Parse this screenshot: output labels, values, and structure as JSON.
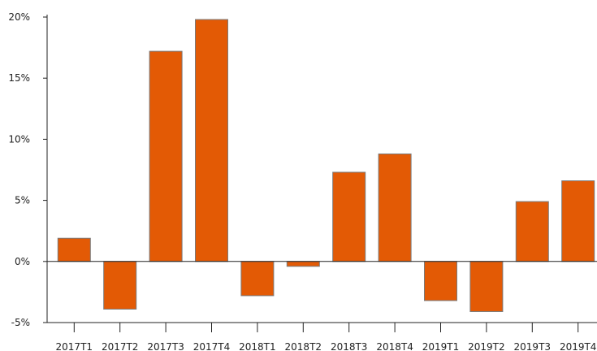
{
  "chart_data": {
    "type": "bar",
    "categories": [
      "2017T1",
      "2017T2",
      "2017T3",
      "2017T4",
      "2018T1",
      "2018T2",
      "2018T3",
      "2018T4",
      "2019T1",
      "2019T2",
      "2019T3",
      "2019T4"
    ],
    "values": [
      1.9,
      -3.9,
      17.2,
      19.8,
      -2.8,
      -0.4,
      7.3,
      8.8,
      -3.2,
      -4.1,
      4.9,
      6.6
    ],
    "ylim": [
      -5,
      20
    ],
    "y_ticks": [
      -5,
      0,
      5,
      10,
      15,
      20
    ],
    "y_tick_labels": [
      "-5%",
      "0%",
      "5%",
      "10%",
      "15%",
      "20%"
    ],
    "title": "",
    "xlabel": "",
    "ylabel": "",
    "grid": false,
    "bar_color": "#e35a05",
    "bar_edge_color": "#7a7a7a"
  }
}
